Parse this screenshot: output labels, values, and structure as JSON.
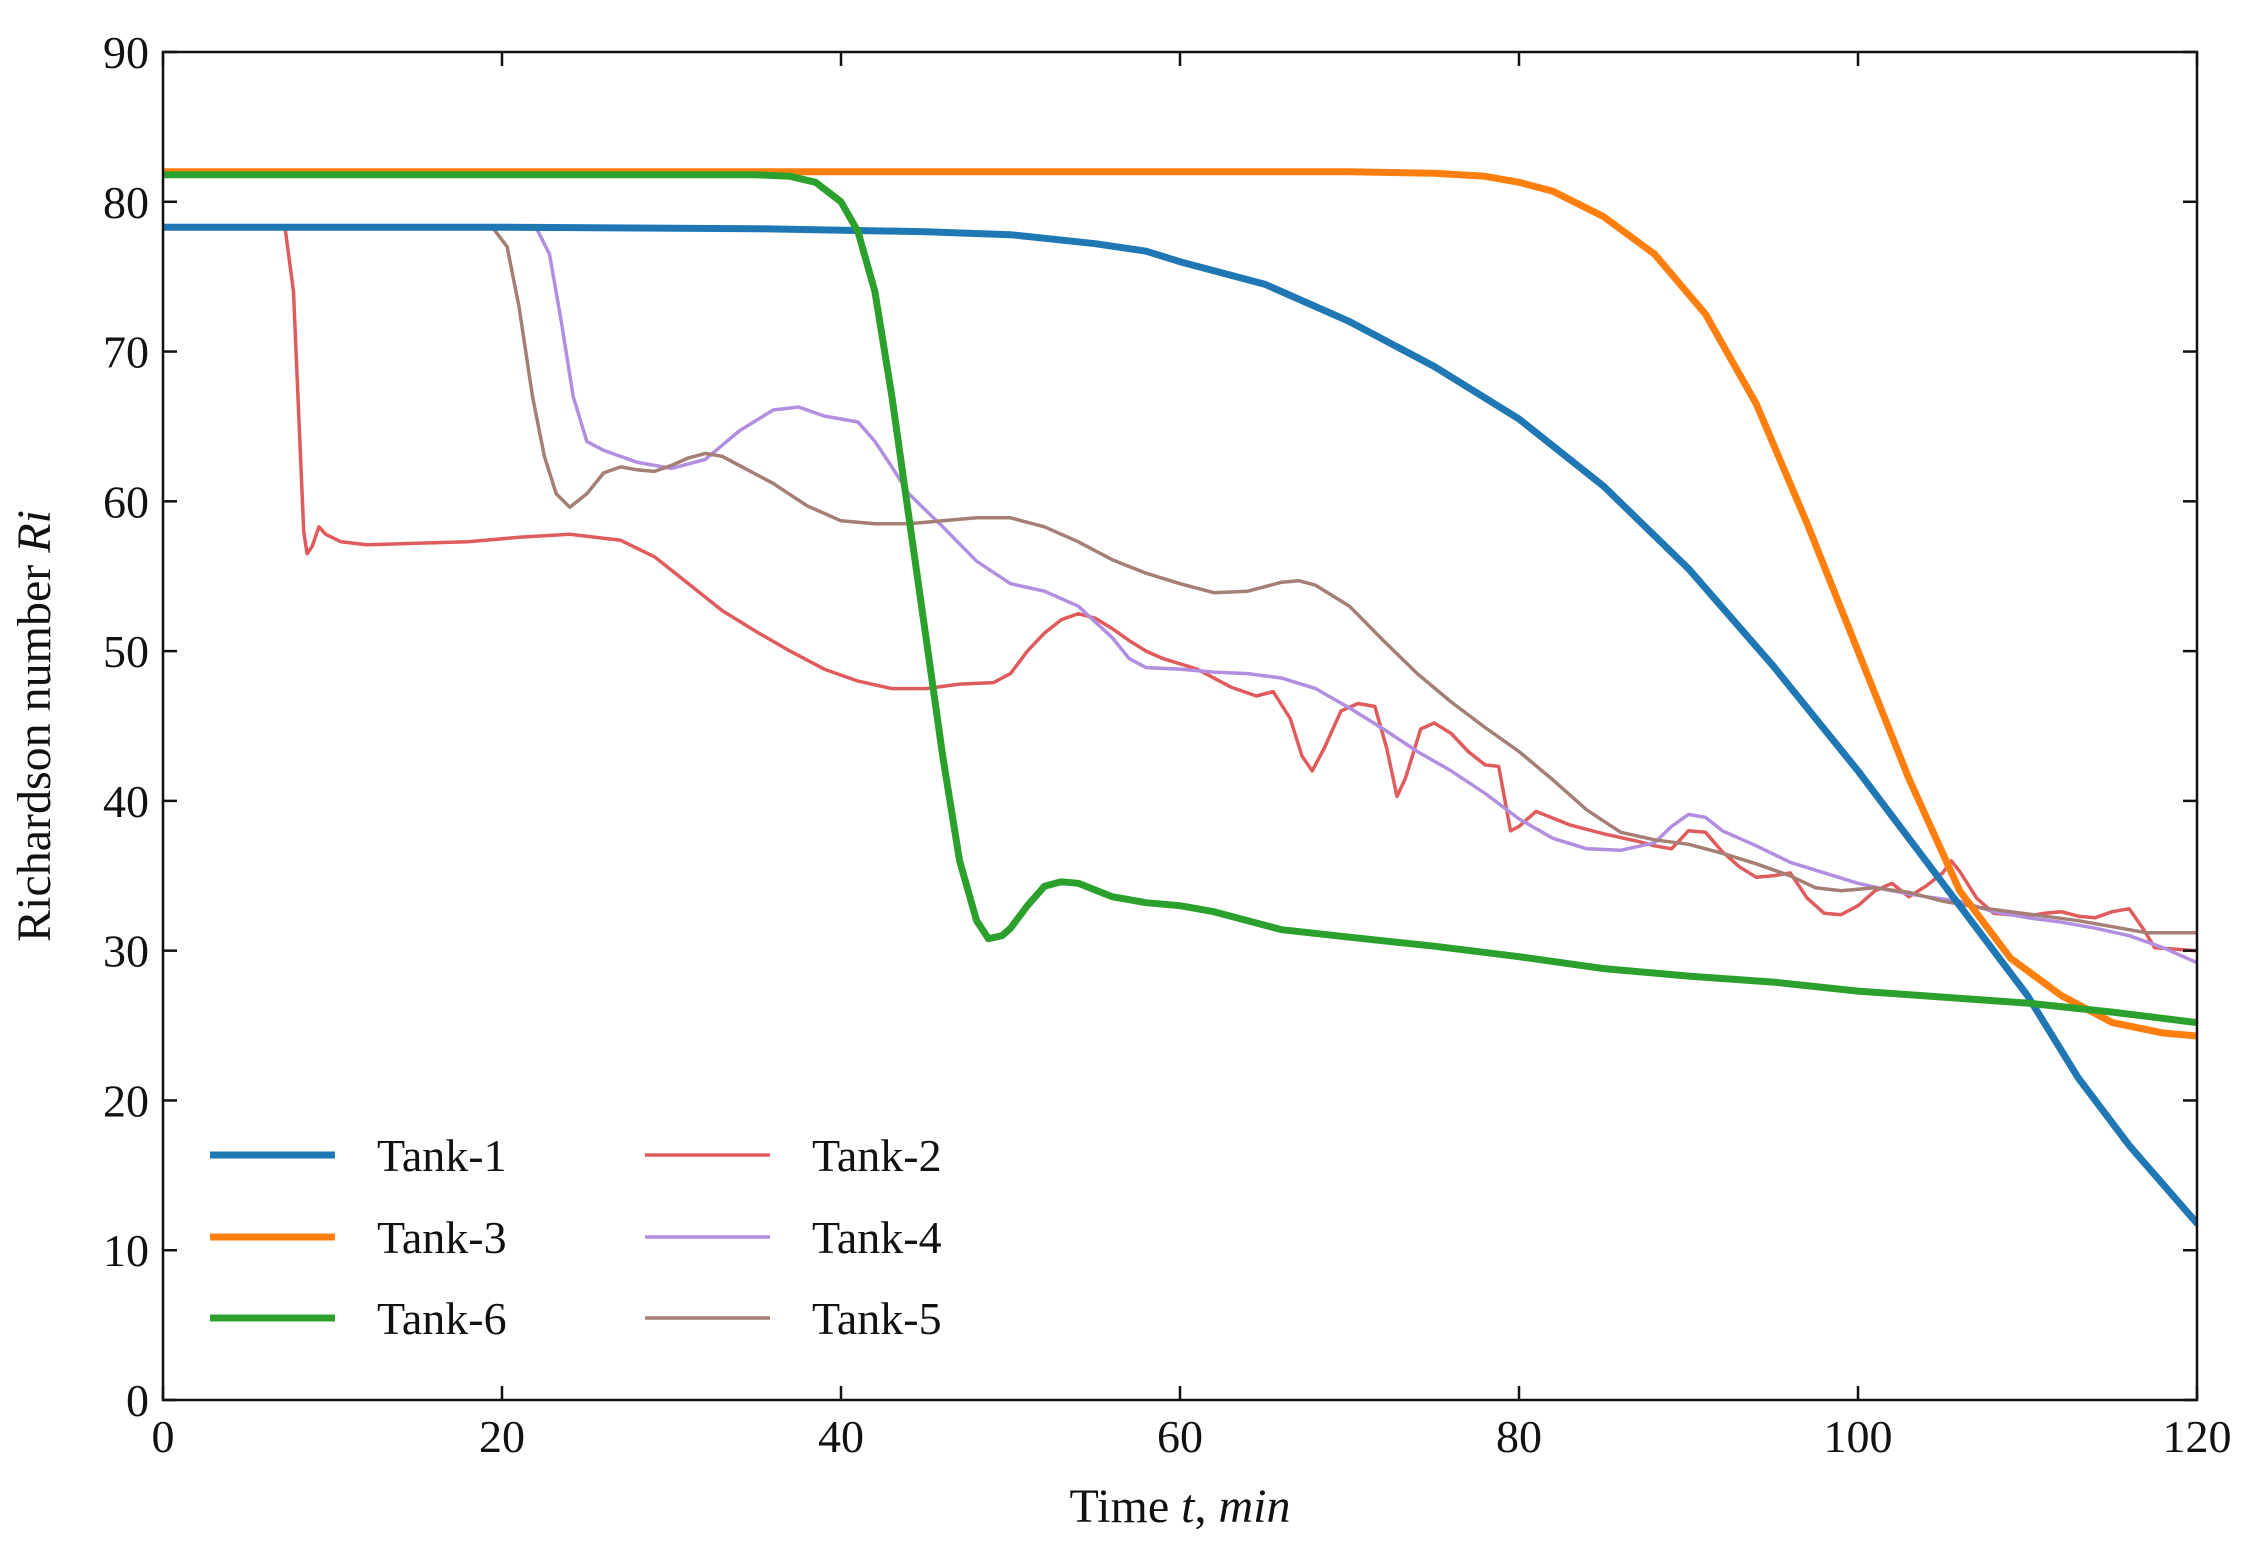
{
  "chart_data": {
    "type": "line",
    "title": "",
    "xlabel": {
      "prefix": "Time ",
      "var": "t",
      "sep": ", ",
      "unit": "min"
    },
    "ylabel": {
      "prefix": "Richardson number ",
      "var": "Ri"
    },
    "xlim": [
      0,
      120
    ],
    "ylim": [
      0,
      90
    ],
    "xticks": [
      0,
      20,
      40,
      60,
      80,
      100,
      120
    ],
    "yticks": [
      0,
      10,
      20,
      30,
      40,
      50,
      60,
      70,
      80,
      90
    ],
    "grid": false,
    "legend_position": "lower-left",
    "series": [
      {
        "name": "Tank-1",
        "color": "#1f77b4",
        "width": "thick",
        "points": [
          [
            0,
            78.3
          ],
          [
            20,
            78.3
          ],
          [
            35,
            78.2
          ],
          [
            45,
            78.0
          ],
          [
            50,
            77.8
          ],
          [
            55,
            77.2
          ],
          [
            58,
            76.7
          ],
          [
            60,
            76.0
          ],
          [
            65,
            74.5
          ],
          [
            70,
            72.0
          ],
          [
            75,
            69.0
          ],
          [
            80,
            65.5
          ],
          [
            85,
            61.0
          ],
          [
            90,
            55.5
          ],
          [
            95,
            49.0
          ],
          [
            100,
            42.0
          ],
          [
            105,
            34.5
          ],
          [
            110,
            27.0
          ],
          [
            113,
            21.5
          ],
          [
            116,
            17.0
          ],
          [
            120,
            11.8
          ]
        ]
      },
      {
        "name": "Tank-3",
        "color": "#ff7f0e",
        "width": "thick",
        "points": [
          [
            0,
            82.0
          ],
          [
            60,
            82.0
          ],
          [
            70,
            82.0
          ],
          [
            75,
            81.9
          ],
          [
            78,
            81.7
          ],
          [
            80,
            81.3
          ],
          [
            82,
            80.7
          ],
          [
            85,
            79.0
          ],
          [
            88,
            76.5
          ],
          [
            91,
            72.5
          ],
          [
            94,
            66.5
          ],
          [
            97,
            58.5
          ],
          [
            100,
            50.0
          ],
          [
            103,
            41.5
          ],
          [
            106,
            34.0
          ],
          [
            109,
            29.5
          ],
          [
            112,
            27.0
          ],
          [
            115,
            25.2
          ],
          [
            118,
            24.5
          ],
          [
            120,
            24.3
          ]
        ]
      },
      {
        "name": "Tank-6",
        "color": "#2ca02c",
        "width": "thick",
        "points": [
          [
            0,
            81.8
          ],
          [
            20,
            81.8
          ],
          [
            35,
            81.8
          ],
          [
            37,
            81.7
          ],
          [
            38.5,
            81.3
          ],
          [
            40,
            80.0
          ],
          [
            41,
            78.0
          ],
          [
            42,
            74.0
          ],
          [
            43,
            67.0
          ],
          [
            44,
            59.0
          ],
          [
            45,
            51.0
          ],
          [
            46,
            43.0
          ],
          [
            47,
            36.0
          ],
          [
            48,
            32.0
          ],
          [
            48.7,
            30.8
          ],
          [
            49.5,
            31.0
          ],
          [
            50,
            31.5
          ],
          [
            51,
            33.0
          ],
          [
            52,
            34.3
          ],
          [
            53,
            34.6
          ],
          [
            54,
            34.5
          ],
          [
            56,
            33.6
          ],
          [
            58,
            33.2
          ],
          [
            60,
            33.0
          ],
          [
            62,
            32.6
          ],
          [
            64,
            32.0
          ],
          [
            66,
            31.4
          ],
          [
            70,
            30.9
          ],
          [
            75,
            30.3
          ],
          [
            80,
            29.6
          ],
          [
            85,
            28.8
          ],
          [
            90,
            28.3
          ],
          [
            95,
            27.9
          ],
          [
            100,
            27.3
          ],
          [
            105,
            26.9
          ],
          [
            110,
            26.5
          ],
          [
            115,
            25.9
          ],
          [
            120,
            25.2
          ]
        ]
      },
      {
        "name": "Tank-2",
        "color": "#e05c5c",
        "width": "thin",
        "points": [
          [
            0,
            78.3
          ],
          [
            7.2,
            78.3
          ],
          [
            7.7,
            74.0
          ],
          [
            8.0,
            66.0
          ],
          [
            8.3,
            58.0
          ],
          [
            8.5,
            56.5
          ],
          [
            8.8,
            57.0
          ],
          [
            9.2,
            58.3
          ],
          [
            9.6,
            57.8
          ],
          [
            10.5,
            57.3
          ],
          [
            12,
            57.1
          ],
          [
            15,
            57.2
          ],
          [
            18,
            57.3
          ],
          [
            21,
            57.6
          ],
          [
            24,
            57.8
          ],
          [
            27,
            57.4
          ],
          [
            29,
            56.3
          ],
          [
            31,
            54.5
          ],
          [
            33,
            52.7
          ],
          [
            35,
            51.3
          ],
          [
            37,
            50.0
          ],
          [
            39,
            48.8
          ],
          [
            41,
            48.0
          ],
          [
            43,
            47.5
          ],
          [
            45,
            47.5
          ],
          [
            47,
            47.8
          ],
          [
            49,
            47.9
          ],
          [
            50,
            48.5
          ],
          [
            51,
            50.0
          ],
          [
            52,
            51.2
          ],
          [
            53,
            52.1
          ],
          [
            54,
            52.5
          ],
          [
            55,
            52.2
          ],
          [
            56,
            51.5
          ],
          [
            57,
            50.7
          ],
          [
            58,
            50.0
          ],
          [
            59,
            49.5
          ],
          [
            61,
            48.8
          ],
          [
            63,
            47.6
          ],
          [
            64.5,
            47.0
          ],
          [
            65.5,
            47.3
          ],
          [
            66.5,
            45.5
          ],
          [
            67.2,
            43.0
          ],
          [
            67.8,
            42.0
          ],
          [
            68.5,
            43.5
          ],
          [
            69.5,
            46.0
          ],
          [
            70.5,
            46.5
          ],
          [
            71.5,
            46.3
          ],
          [
            72.2,
            43.5
          ],
          [
            72.8,
            40.3
          ],
          [
            73.3,
            41.5
          ],
          [
            74.2,
            44.8
          ],
          [
            75,
            45.2
          ],
          [
            76,
            44.5
          ],
          [
            77,
            43.3
          ],
          [
            78,
            42.4
          ],
          [
            78.8,
            42.3
          ],
          [
            79.5,
            38.0
          ],
          [
            80,
            38.3
          ],
          [
            81,
            39.3
          ],
          [
            83,
            38.4
          ],
          [
            85,
            37.8
          ],
          [
            87,
            37.3
          ],
          [
            88,
            37.0
          ],
          [
            89,
            36.8
          ],
          [
            90,
            38.0
          ],
          [
            91,
            37.9
          ],
          [
            92,
            36.6
          ],
          [
            93,
            35.6
          ],
          [
            94,
            34.9
          ],
          [
            95,
            35.0
          ],
          [
            96,
            35.2
          ],
          [
            97,
            33.5
          ],
          [
            98,
            32.5
          ],
          [
            99,
            32.4
          ],
          [
            100,
            33.0
          ],
          [
            101,
            34.0
          ],
          [
            102,
            34.5
          ],
          [
            103,
            33.6
          ],
          [
            104,
            34.3
          ],
          [
            105,
            35.2
          ],
          [
            105.5,
            36.0
          ],
          [
            106,
            35.3
          ],
          [
            107,
            33.5
          ],
          [
            108,
            32.5
          ],
          [
            110,
            32.3
          ],
          [
            111,
            32.5
          ],
          [
            112,
            32.6
          ],
          [
            113,
            32.3
          ],
          [
            114,
            32.2
          ],
          [
            115,
            32.6
          ],
          [
            116,
            32.8
          ],
          [
            116.8,
            31.5
          ],
          [
            117.5,
            30.2
          ],
          [
            120,
            30.0
          ]
        ]
      },
      {
        "name": "Tank-4",
        "color": "#b18ee0",
        "width": "thin",
        "points": [
          [
            0,
            78.3
          ],
          [
            20,
            78.3
          ],
          [
            22,
            78.3
          ],
          [
            22.8,
            76.5
          ],
          [
            23.5,
            72.0
          ],
          [
            24.2,
            67.0
          ],
          [
            25,
            64.0
          ],
          [
            26,
            63.4
          ],
          [
            28,
            62.6
          ],
          [
            30,
            62.2
          ],
          [
            32,
            62.8
          ],
          [
            34,
            64.7
          ],
          [
            36,
            66.1
          ],
          [
            37.5,
            66.3
          ],
          [
            39,
            65.7
          ],
          [
            41,
            65.3
          ],
          [
            42,
            64.0
          ],
          [
            43,
            62.3
          ],
          [
            44,
            60.5
          ],
          [
            46,
            58.3
          ],
          [
            48,
            56.0
          ],
          [
            50,
            54.5
          ],
          [
            52,
            54.0
          ],
          [
            54,
            53.0
          ],
          [
            56,
            50.9
          ],
          [
            57,
            49.5
          ],
          [
            58,
            48.9
          ],
          [
            60,
            48.8
          ],
          [
            62,
            48.6
          ],
          [
            64,
            48.5
          ],
          [
            66,
            48.2
          ],
          [
            68,
            47.5
          ],
          [
            70,
            46.2
          ],
          [
            72,
            44.8
          ],
          [
            74,
            43.3
          ],
          [
            76,
            42.0
          ],
          [
            78,
            40.5
          ],
          [
            80,
            38.8
          ],
          [
            82,
            37.5
          ],
          [
            84,
            36.8
          ],
          [
            86,
            36.7
          ],
          [
            88,
            37.2
          ],
          [
            89,
            38.3
          ],
          [
            90,
            39.1
          ],
          [
            91,
            38.9
          ],
          [
            92,
            38.0
          ],
          [
            94,
            37.0
          ],
          [
            96,
            35.9
          ],
          [
            98,
            35.2
          ],
          [
            100,
            34.5
          ],
          [
            102,
            34.0
          ],
          [
            104,
            33.6
          ],
          [
            106,
            33.3
          ],
          [
            108,
            32.6
          ],
          [
            110,
            32.2
          ],
          [
            112,
            31.9
          ],
          [
            114,
            31.5
          ],
          [
            116,
            31.0
          ],
          [
            118,
            30.2
          ],
          [
            120,
            29.2
          ]
        ]
      },
      {
        "name": "Tank-5",
        "color": "#a57e74",
        "width": "thin",
        "points": [
          [
            0,
            78.3
          ],
          [
            18,
            78.3
          ],
          [
            19.5,
            78.2
          ],
          [
            20.3,
            77.0
          ],
          [
            21,
            73.0
          ],
          [
            21.8,
            67.0
          ],
          [
            22.5,
            63.0
          ],
          [
            23.2,
            60.5
          ],
          [
            24,
            59.6
          ],
          [
            25,
            60.5
          ],
          [
            26,
            61.9
          ],
          [
            27,
            62.3
          ],
          [
            28,
            62.1
          ],
          [
            29,
            62.0
          ],
          [
            30,
            62.4
          ],
          [
            31,
            62.9
          ],
          [
            32,
            63.2
          ],
          [
            33,
            63.0
          ],
          [
            34,
            62.4
          ],
          [
            36,
            61.2
          ],
          [
            38,
            59.7
          ],
          [
            40,
            58.7
          ],
          [
            42,
            58.5
          ],
          [
            44,
            58.5
          ],
          [
            46,
            58.7
          ],
          [
            48,
            58.9
          ],
          [
            50,
            58.9
          ],
          [
            52,
            58.3
          ],
          [
            54,
            57.3
          ],
          [
            56,
            56.1
          ],
          [
            58,
            55.2
          ],
          [
            60,
            54.5
          ],
          [
            62,
            53.9
          ],
          [
            64,
            54.0
          ],
          [
            66,
            54.6
          ],
          [
            67,
            54.7
          ],
          [
            68,
            54.4
          ],
          [
            70,
            53.0
          ],
          [
            72,
            50.7
          ],
          [
            74,
            48.5
          ],
          [
            76,
            46.6
          ],
          [
            78,
            44.9
          ],
          [
            80,
            43.3
          ],
          [
            82,
            41.4
          ],
          [
            84,
            39.4
          ],
          [
            86,
            37.9
          ],
          [
            88,
            37.4
          ],
          [
            90,
            37.1
          ],
          [
            92,
            36.5
          ],
          [
            94,
            35.8
          ],
          [
            96,
            35.0
          ],
          [
            97.5,
            34.2
          ],
          [
            99,
            34.0
          ],
          [
            101,
            34.2
          ],
          [
            103,
            33.9
          ],
          [
            105,
            33.3
          ],
          [
            107,
            32.9
          ],
          [
            109,
            32.6
          ],
          [
            111,
            32.3
          ],
          [
            113,
            32.0
          ],
          [
            115,
            31.6
          ],
          [
            117,
            31.2
          ],
          [
            120,
            31.2
          ]
        ]
      }
    ]
  }
}
